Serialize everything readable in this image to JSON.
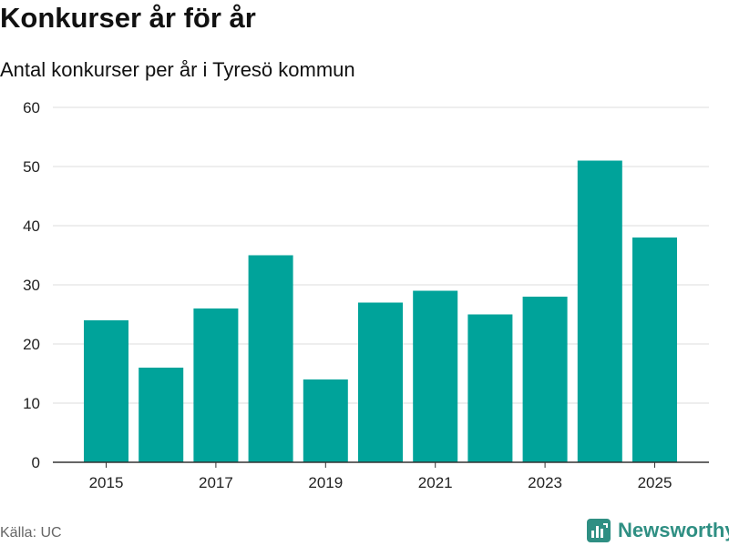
{
  "header": {
    "title": "Konkurser år för år",
    "subtitle": "Antal konkurser per år i Tyresö kommun"
  },
  "footer": {
    "source": "Källa: UC",
    "brand": "Newsworthy"
  },
  "colors": {
    "bar": "#00a39a",
    "grid": "#dddddd",
    "axis": "#333333",
    "brand": "#2f8f83"
  },
  "chart_data": {
    "type": "bar",
    "title": "Konkurser år för år",
    "subtitle": "Antal konkurser per år i Tyresö kommun",
    "categories": [
      "2015",
      "2016",
      "2017",
      "2018",
      "2019",
      "2020",
      "2021",
      "2022",
      "2023",
      "2024",
      "2025"
    ],
    "values": [
      24,
      16,
      26,
      35,
      14,
      27,
      29,
      25,
      28,
      51,
      38
    ],
    "x_tick_labels": [
      "2015",
      "2017",
      "2019",
      "2021",
      "2023",
      "2025"
    ],
    "y_ticks": [
      0,
      10,
      20,
      30,
      40,
      50,
      60
    ],
    "ylim": [
      0,
      60
    ],
    "xlabel": "",
    "ylabel": "",
    "grid": true
  }
}
